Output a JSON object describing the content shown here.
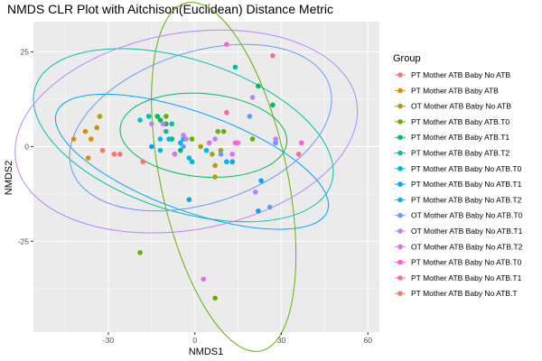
{
  "chart_data": {
    "type": "scatter",
    "title": "NMDS CLR Plot with Aitchison(Euclidean) Distance Metric",
    "xlabel": "NMDS1",
    "ylabel": "NMDS2",
    "xlim": [
      -56,
      64
    ],
    "ylim": [
      -49,
      33
    ],
    "xticks": [
      -30,
      0,
      30,
      60
    ],
    "yticks": [
      -25,
      0,
      25
    ],
    "grid": true,
    "legend_title": "Group",
    "legend_position": "right",
    "series": [
      {
        "name": "PT Mother ATB Baby No ATB",
        "color": "#F8766D",
        "points": [
          [
            -32,
            -1
          ],
          [
            -26,
            -2
          ]
        ],
        "ellipse": null
      },
      {
        "name": "PT Mother ATB Baby ATB",
        "color": "#DB8E00",
        "points": [
          [
            -42,
            2
          ],
          [
            -38,
            4
          ],
          [
            -37,
            -3
          ],
          [
            -36,
            2
          ],
          [
            -34,
            5
          ]
        ],
        "ellipse": null
      },
      {
        "name": "OT Mother ATB Baby No ATB",
        "color": "#AEA200",
        "points": [
          [
            -33,
            8
          ],
          [
            2,
            0
          ],
          [
            6,
            -2
          ],
          [
            9,
            -1
          ],
          [
            7,
            -5
          ],
          [
            7,
            -8
          ]
        ],
        "ellipse": null
      },
      {
        "name": "PT Mother ATB Baby ATB.T0",
        "color": "#64B200",
        "points": [
          [
            -19,
            -28
          ],
          [
            -10,
            8
          ],
          [
            -1,
            2
          ],
          [
            8,
            4
          ],
          [
            10,
            4
          ],
          [
            20,
            2
          ],
          [
            7,
            -40
          ]
        ],
        "ellipse": {
          "cx": 10,
          "cy": -8,
          "rx": 22,
          "ry": 47,
          "angle": 12
        }
      },
      {
        "name": "PT Mother ATB Baby ATB.T1",
        "color": "#00BD5C",
        "points": [
          [
            -13,
            8
          ],
          [
            -12,
            7
          ],
          [
            -10,
            6
          ],
          [
            -8,
            2
          ],
          [
            -7,
            -2
          ],
          [
            -5,
            -1
          ],
          [
            22,
            16
          ],
          [
            27,
            11
          ]
        ],
        "ellipse": {
          "cx": 3,
          "cy": 3,
          "rx": 29,
          "ry": 11,
          "angle": -5
        }
      },
      {
        "name": "PT Mother ATB Baby ATB.T2",
        "color": "#00C1A7",
        "points": [
          [
            -16,
            8
          ],
          [
            14,
            21
          ],
          [
            -8,
            6
          ],
          [
            -10,
            4
          ]
        ],
        "ellipse": {
          "cx": -4,
          "cy": 3,
          "rx": 54,
          "ry": 20,
          "angle": -18
        }
      },
      {
        "name": "PT Mother ATB Baby No ATB.T0",
        "color": "#00BADE",
        "points": [
          [
            -19,
            7
          ],
          [
            -12,
            -1
          ],
          [
            -9,
            2
          ],
          [
            -2,
            -3
          ],
          [
            -1,
            -4
          ],
          [
            -4,
            2
          ]
        ],
        "ellipse": null
      },
      {
        "name": "PT Mother ATB Baby No ATB.T1",
        "color": "#00A6FF",
        "points": [
          [
            -15,
            0
          ],
          [
            -2,
            -14
          ],
          [
            13,
            -4
          ],
          [
            23,
            -9
          ],
          [
            22,
            -17
          ]
        ],
        "ellipse": {
          "cx": -1,
          "cy": -4,
          "rx": 50,
          "ry": 13,
          "angle": -20
        }
      },
      {
        "name": "PT Mother ATB Baby No ATB.T2",
        "color": "#00B5FF",
        "points": [
          [
            -12,
            2
          ],
          [
            -5,
            1
          ],
          [
            4,
            -1
          ],
          [
            11,
            -4
          ]
        ],
        "ellipse": null
      },
      {
        "name": "OT Mother ATB Baby No ATB.T0",
        "color": "#619CFF",
        "points": [
          [
            -4,
            0
          ],
          [
            9,
            -2
          ],
          [
            19,
            8
          ],
          [
            26,
            -16
          ],
          [
            28,
            1
          ]
        ],
        "ellipse": {
          "cx": 2,
          "cy": 5,
          "rx": 47,
          "ry": 20,
          "angle": 18
        }
      },
      {
        "name": "OT Mother ATB Baby No ATB.T1",
        "color": "#B983FF",
        "points": [
          [
            -15,
            6
          ],
          [
            -11,
            6
          ],
          [
            -4,
            3
          ],
          [
            20,
            13
          ],
          [
            21,
            -12
          ],
          [
            28,
            2
          ],
          [
            -3,
            2
          ],
          [
            7,
            2
          ]
        ],
        "ellipse": {
          "cx": -3,
          "cy": 4,
          "rx": 60,
          "ry": 26,
          "angle": 10
        }
      },
      {
        "name": "OT Mother ATB Baby No ATB.T2",
        "color": "#E76BF3",
        "points": [
          [
            3,
            -35
          ],
          [
            -7,
            -2
          ],
          [
            5,
            1
          ],
          [
            13,
            -2
          ],
          [
            15,
            1
          ]
        ],
        "ellipse": null
      },
      {
        "name": "PT Mother ATB Baby No ATB.T0",
        "color": "#FD61D1",
        "points": [
          [
            11,
            27
          ],
          [
            14,
            1
          ],
          [
            37,
            1
          ]
        ],
        "ellipse": null
      },
      {
        "name": "PT Mother ATB Baby No ATB.T1",
        "color": "#FF67A4",
        "points": [
          [
            27,
            24
          ],
          [
            11,
            9
          ],
          [
            36,
            -2
          ]
        ],
        "ellipse": null
      },
      {
        "name": "PT Mother ATB Baby No ATB.T",
        "color": "#F8766D",
        "points": [
          [
            -18,
            -4
          ],
          [
            -28,
            -2
          ]
        ],
        "ellipse": null
      }
    ]
  }
}
